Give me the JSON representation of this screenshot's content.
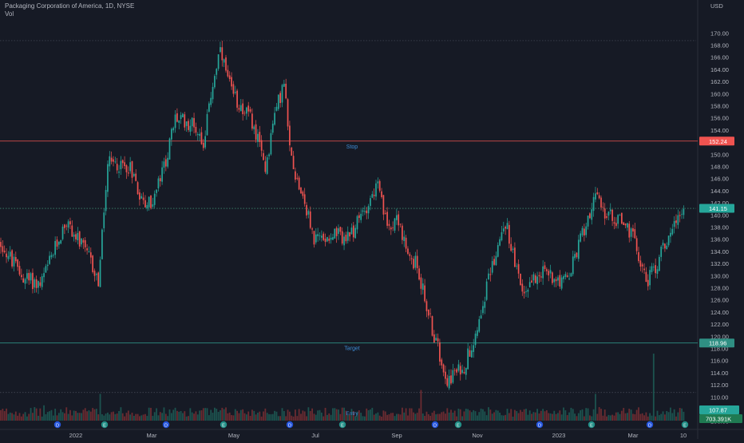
{
  "header": {
    "title": "Packaging Corporation of America, 1D, NYSE",
    "indicator": "Vol"
  },
  "axis": {
    "currency": "USD",
    "price_ticks": [
      "170.00",
      "168.00",
      "166.00",
      "164.00",
      "162.00",
      "160.00",
      "158.00",
      "156.00",
      "154.00",
      "152.00",
      "150.00",
      "148.00",
      "146.00",
      "144.00",
      "142.00",
      "140.00",
      "138.00",
      "136.00",
      "134.00",
      "132.00",
      "130.00",
      "128.00",
      "126.00",
      "124.00",
      "122.00",
      "120.00",
      "118.00",
      "116.00",
      "114.00",
      "112.00",
      "110.00",
      "108.00",
      "106.00"
    ],
    "time_labels": [
      "2022",
      "Mar",
      "May",
      "Jul",
      "Sep",
      "Nov",
      "2023",
      "Mar",
      "10"
    ]
  },
  "levels": {
    "stop": {
      "label": "Stop",
      "value": 152.24,
      "tag": "152.24"
    },
    "target": {
      "label": "Target",
      "value": 118.96,
      "tag": "118.96"
    },
    "last": {
      "value": 141.15,
      "tag": "141.15"
    },
    "upper": {
      "value": 168.8
    },
    "lower": {
      "value": 110.8
    },
    "entry": {
      "label": "Entry"
    }
  },
  "badges": {
    "price": "107.87",
    "volume": "703.391K"
  },
  "colors": {
    "background": "#161a25",
    "up": "#26a69a",
    "down": "#ef5350",
    "stop_line": "#ef5350",
    "target_line": "#26a69a",
    "label_text": "#2962ff"
  },
  "chart_data": {
    "type": "candlestick",
    "symbol": "Packaging Corporation of America",
    "interval": "1D",
    "exchange": "NYSE",
    "y_range": [
      106,
      172
    ],
    "anchors": [
      [
        "2021-11-15",
        135.5
      ],
      [
        "2021-12-01",
        130
      ],
      [
        "2021-12-15",
        128.5
      ],
      [
        "2022-01-03",
        139
      ],
      [
        "2022-01-20",
        133
      ],
      [
        "2022-01-27",
        129
      ],
      [
        "2022-02-03",
        148.5
      ],
      [
        "2022-02-20",
        148
      ],
      [
        "2022-03-01",
        142
      ],
      [
        "2022-03-08",
        142
      ],
      [
        "2022-03-18",
        149
      ],
      [
        "2022-03-25",
        156
      ],
      [
        "2022-04-08",
        155
      ],
      [
        "2022-04-15",
        152
      ],
      [
        "2022-04-22",
        162
      ],
      [
        "2022-04-27",
        167
      ],
      [
        "2022-05-06",
        160
      ],
      [
        "2022-05-20",
        156
      ],
      [
        "2022-05-31",
        148
      ],
      [
        "2022-06-07",
        157
      ],
      [
        "2022-06-14",
        162
      ],
      [
        "2022-06-17",
        152
      ],
      [
        "2022-06-22",
        147
      ],
      [
        "2022-06-28",
        143
      ],
      [
        "2022-07-06",
        136
      ],
      [
        "2022-07-20",
        137
      ],
      [
        "2022-08-01",
        136
      ],
      [
        "2022-08-10",
        140
      ],
      [
        "2022-08-22",
        145
      ],
      [
        "2022-08-29",
        138
      ],
      [
        "2022-09-06",
        140
      ],
      [
        "2022-09-13",
        133
      ],
      [
        "2022-09-20",
        132
      ],
      [
        "2022-10-03",
        120
      ],
      [
        "2022-10-13",
        113
      ],
      [
        "2022-10-25",
        115
      ],
      [
        "2022-11-03",
        121
      ],
      [
        "2022-11-14",
        131
      ],
      [
        "2022-11-25",
        139
      ],
      [
        "2022-12-07",
        127
      ],
      [
        "2022-12-20",
        131
      ],
      [
        "2023-01-10",
        129
      ],
      [
        "2023-01-18",
        135
      ],
      [
        "2023-01-30",
        143
      ],
      [
        "2023-02-08",
        140
      ],
      [
        "2023-02-20",
        139
      ],
      [
        "2023-02-28",
        136
      ],
      [
        "2023-03-10",
        129
      ],
      [
        "2023-03-17",
        132
      ],
      [
        "2023-03-28",
        138
      ],
      [
        "2023-04-05",
        141.15
      ]
    ],
    "volume_spikes": [
      [
        "2021-12-17",
        8
      ],
      [
        "2022-01-28",
        14
      ],
      [
        "2022-09-23",
        16
      ],
      [
        "2023-01-31",
        14
      ],
      [
        "2023-03-15",
        35
      ]
    ]
  }
}
